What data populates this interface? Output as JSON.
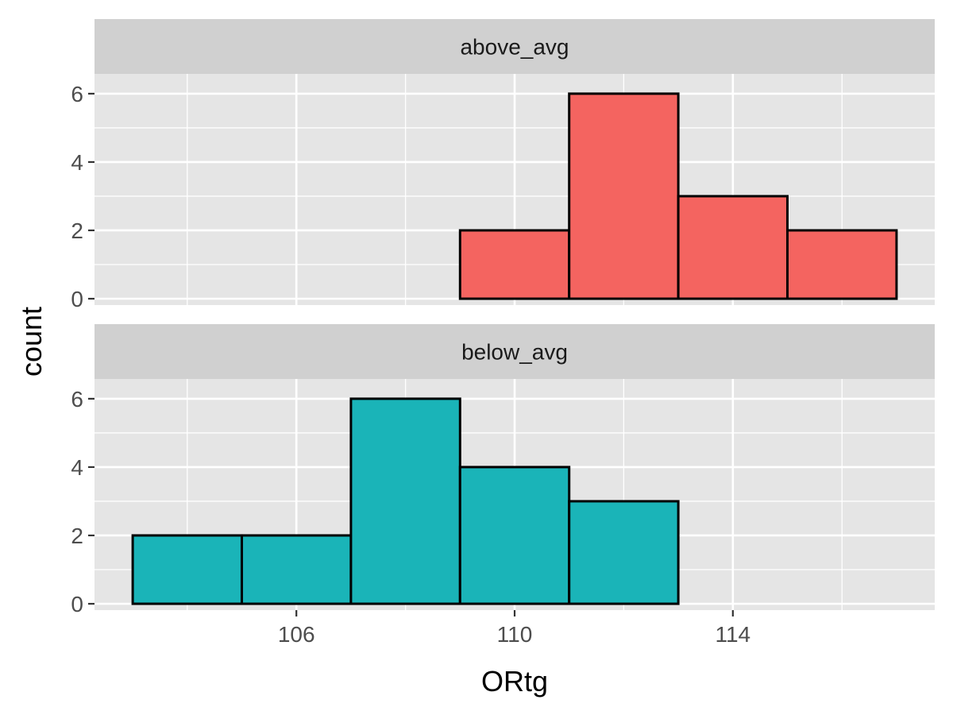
{
  "chart_data": {
    "type": "bar",
    "subtype": "faceted-histogram",
    "xlabel": "ORtg",
    "ylabel": "count",
    "bin_width": 2,
    "bins": [
      [
        103,
        105
      ],
      [
        105,
        107
      ],
      [
        107,
        109
      ],
      [
        109,
        111
      ],
      [
        111,
        113
      ],
      [
        113,
        115
      ],
      [
        115,
        117
      ]
    ],
    "xlim": [
      102.3,
      117.7
    ],
    "ylim": [
      0,
      6.3
    ],
    "x_ticks": [
      106,
      110,
      114
    ],
    "y_ticks": [
      0,
      2,
      4,
      6
    ],
    "grid": true,
    "legend": "none",
    "facets": [
      {
        "label": "above_avg",
        "fill": "#F46460",
        "counts": [
          0,
          0,
          0,
          2,
          6,
          3,
          2
        ]
      },
      {
        "label": "below_avg",
        "fill": "#1AB4B8",
        "counts": [
          2,
          2,
          6,
          4,
          3,
          0,
          0
        ]
      }
    ]
  },
  "colors": {
    "panel_background": "#E5E5E5",
    "strip_background": "#D0D0D0",
    "grid_line": "#FFFFFF",
    "bar_outline": "#000000",
    "tick_mark": "#333333"
  }
}
